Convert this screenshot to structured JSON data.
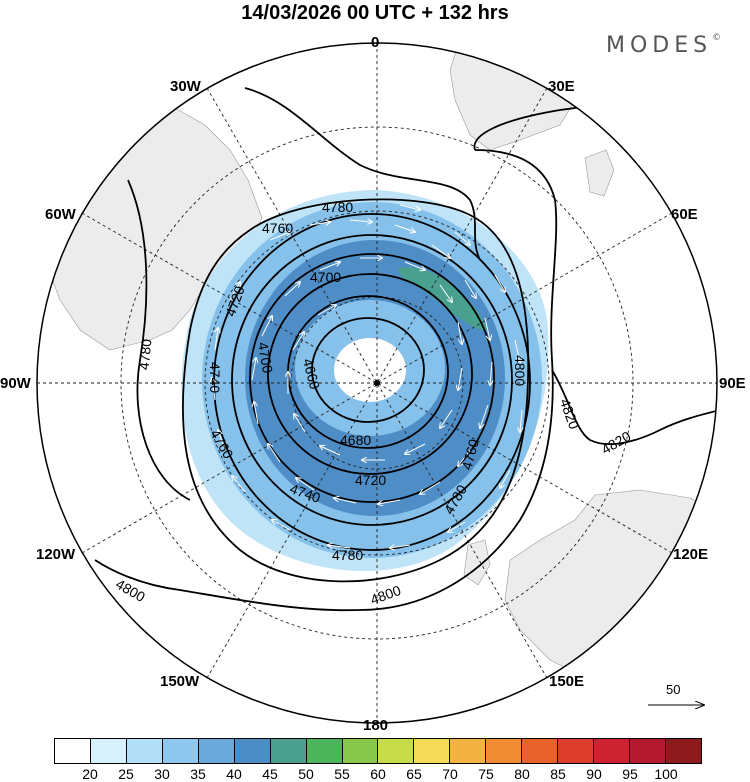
{
  "title": "14/03/2026  00 UTC  + 132 hrs",
  "brand": "MODES",
  "brand_mark": "©",
  "longitude_labels": {
    "lon_0": "0",
    "lon_30e": "30E",
    "lon_60e": "60E",
    "lon_90e": "90E",
    "lon_120e": "120E",
    "lon_150e": "150E",
    "lon_180": "180",
    "lon_150w": "150W",
    "lon_120w": "120W",
    "lon_90w": "90W",
    "lon_60w": "60W",
    "lon_30w": "30W"
  },
  "contour_labels": {
    "c4780a": "4780",
    "c4760a": "4760",
    "c4700a": "4700",
    "c4720a": "4720",
    "c4780w": "4780",
    "c4740": "4740",
    "c4700b": "4700",
    "c4660": "4660",
    "c4760b": "4760",
    "c4680": "4680",
    "c4720b": "4720",
    "c4740b": "4740",
    "c4780b": "4780",
    "c4800s": "4800",
    "c4800sw": "4800",
    "c4760e": "4760",
    "c4780e": "4780",
    "c4800e": "4800",
    "c4820a": "4820",
    "c4820b": "4820"
  },
  "reference_vector": "50",
  "colorbar": {
    "colors": [
      "#ffffff",
      "#d6f1fc",
      "#b4e0f7",
      "#8ec8ee",
      "#6aa9dc",
      "#4b8ec6",
      "#4aa08e",
      "#4cb45a",
      "#88c64c",
      "#c7dc4b",
      "#f4dc5a",
      "#f3b343",
      "#f08b33",
      "#e8632c",
      "#dd3d2b",
      "#cc2232",
      "#b31a2d",
      "#8e1a1e"
    ],
    "labels": [
      "20",
      "25",
      "30",
      "35",
      "40",
      "45",
      "50",
      "55",
      "60",
      "65",
      "70",
      "75",
      "80",
      "85",
      "90",
      "95",
      "100"
    ]
  },
  "colors": {
    "land": "#ececec",
    "wind_light": "#bfe4f8",
    "wind_mid": "#85c1ea",
    "wind_dark": "#4f8dc7",
    "wind_green": "#4aa08e"
  }
}
